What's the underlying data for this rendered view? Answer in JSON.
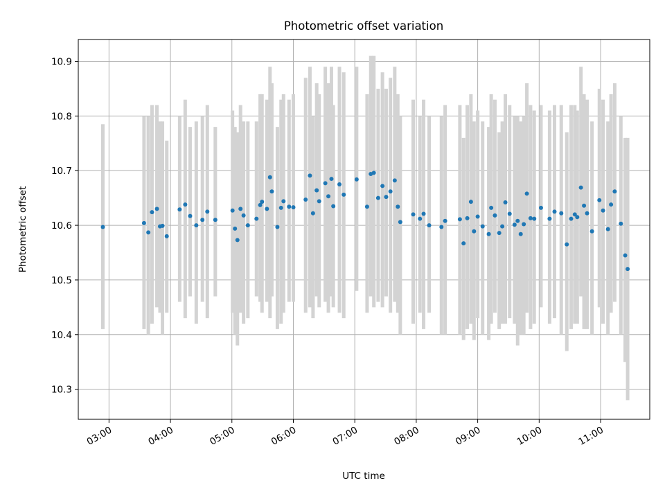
{
  "chart_data": {
    "type": "scatter",
    "title": "Photometric offset variation",
    "xlabel": "UTC time",
    "ylabel": "Photometric offset",
    "grid": true,
    "xlim": [
      2.5,
      11.8
    ],
    "ylim": [
      10.245,
      10.94
    ],
    "x_ticks": [
      3,
      4,
      5,
      6,
      7,
      8,
      9,
      10,
      11
    ],
    "x_tick_labels": [
      "03:00",
      "04:00",
      "05:00",
      "06:00",
      "07:00",
      "08:00",
      "09:00",
      "10:00",
      "11:00"
    ],
    "y_ticks": [
      10.3,
      10.4,
      10.5,
      10.6,
      10.7,
      10.8,
      10.9
    ],
    "y_tick_labels": [
      "10.3",
      "10.4",
      "10.5",
      "10.6",
      "10.7",
      "10.8",
      "10.9"
    ],
    "colors": {
      "point": "#1f77b4",
      "errorbar": "#d3d3d3",
      "grid": "#b0b0b0"
    },
    "series": [
      {
        "x": [
          2.9,
          3.57,
          3.64,
          3.7,
          3.78,
          3.83,
          3.87,
          3.94,
          4.15,
          4.24,
          4.32,
          4.42,
          4.52,
          4.6,
          4.73,
          5.01,
          5.05,
          5.09,
          5.14,
          5.19,
          5.26,
          5.4,
          5.46,
          5.49,
          5.57,
          5.62,
          5.65,
          5.74,
          5.8,
          5.84,
          5.93,
          6.0,
          6.2,
          6.27,
          6.32,
          6.38,
          6.42,
          6.52,
          6.57,
          6.62,
          6.65,
          6.75,
          6.82,
          7.03,
          7.2,
          7.26,
          7.31,
          7.38,
          7.45,
          7.51,
          7.58,
          7.65,
          7.7,
          7.74,
          7.95,
          8.06,
          8.12,
          8.21,
          8.41,
          8.47,
          8.71,
          8.77,
          8.83,
          8.89,
          8.94,
          9.0,
          9.08,
          9.18,
          9.22,
          9.28,
          9.35,
          9.4,
          9.45,
          9.52,
          9.6,
          9.65,
          9.7,
          9.75,
          9.8,
          9.86,
          9.92,
          10.03,
          10.17,
          10.25,
          10.36,
          10.45,
          10.52,
          10.58,
          10.62,
          10.68,
          10.73,
          10.78,
          10.86,
          10.98,
          11.04,
          11.12,
          11.17,
          11.23,
          11.33,
          11.4,
          11.44
        ],
        "y": [
          10.597,
          10.604,
          10.587,
          10.624,
          10.63,
          10.598,
          10.599,
          10.58,
          10.629,
          10.638,
          10.617,
          10.6,
          10.61,
          10.625,
          10.61,
          10.627,
          10.594,
          10.573,
          10.63,
          10.618,
          10.6,
          10.612,
          10.637,
          10.643,
          10.63,
          10.688,
          10.662,
          10.597,
          10.632,
          10.644,
          10.634,
          10.633,
          10.647,
          10.691,
          10.622,
          10.664,
          10.644,
          10.677,
          10.653,
          10.685,
          10.635,
          10.675,
          10.656,
          10.684,
          10.634,
          10.694,
          10.696,
          10.65,
          10.672,
          10.652,
          10.662,
          10.682,
          10.634,
          10.606,
          10.62,
          10.612,
          10.621,
          10.6,
          10.597,
          10.608,
          10.611,
          10.567,
          10.613,
          10.643,
          10.589,
          10.616,
          10.598,
          10.584,
          10.632,
          10.618,
          10.586,
          10.598,
          10.642,
          10.621,
          10.601,
          10.608,
          10.584,
          10.602,
          10.658,
          10.613,
          10.612,
          10.632,
          10.612,
          10.625,
          10.622,
          10.565,
          10.612,
          10.62,
          10.615,
          10.669,
          10.636,
          10.622,
          10.589,
          10.646,
          10.627,
          10.593,
          10.638,
          10.662,
          10.603,
          10.545,
          10.52
        ],
        "err_low": [
          10.41,
          10.41,
          10.4,
          10.42,
          10.45,
          10.44,
          10.4,
          10.44,
          10.46,
          10.43,
          10.47,
          10.42,
          10.46,
          10.43,
          10.47,
          10.44,
          10.4,
          10.38,
          10.44,
          10.42,
          10.43,
          10.47,
          10.46,
          10.44,
          10.46,
          10.43,
          10.47,
          10.41,
          10.42,
          10.44,
          10.46,
          10.46,
          10.44,
          10.45,
          10.43,
          10.47,
          10.45,
          10.46,
          10.44,
          10.47,
          10.45,
          10.44,
          10.43,
          10.48,
          10.44,
          10.47,
          10.45,
          10.46,
          10.45,
          10.47,
          10.44,
          10.46,
          10.44,
          10.4,
          10.42,
          10.44,
          10.41,
          10.44,
          10.4,
          10.4,
          10.4,
          10.39,
          10.41,
          10.42,
          10.39,
          10.43,
          10.4,
          10.39,
          10.42,
          10.44,
          10.41,
          10.42,
          10.42,
          10.43,
          10.42,
          10.38,
          10.4,
          10.4,
          10.44,
          10.41,
          10.42,
          10.45,
          10.42,
          10.43,
          10.4,
          10.37,
          10.41,
          10.42,
          10.42,
          10.47,
          10.41,
          10.41,
          10.4,
          10.45,
          10.42,
          10.4,
          10.44,
          10.46,
          10.4,
          10.35,
          10.28
        ],
        "err_high": [
          10.785,
          10.8,
          10.8,
          10.82,
          10.82,
          10.79,
          10.79,
          10.755,
          10.8,
          10.83,
          10.78,
          10.79,
          10.8,
          10.82,
          10.78,
          10.81,
          10.78,
          10.77,
          10.82,
          10.79,
          10.79,
          10.79,
          10.84,
          10.84,
          10.83,
          10.89,
          10.86,
          10.78,
          10.83,
          10.84,
          10.83,
          10.84,
          10.87,
          10.89,
          10.8,
          10.86,
          10.84,
          10.89,
          10.86,
          10.89,
          10.82,
          10.89,
          10.88,
          10.89,
          10.84,
          10.91,
          10.91,
          10.85,
          10.88,
          10.85,
          10.87,
          10.89,
          10.84,
          10.8,
          10.83,
          10.8,
          10.83,
          10.8,
          10.8,
          10.82,
          10.82,
          10.76,
          10.82,
          10.84,
          10.79,
          10.81,
          10.79,
          10.78,
          10.84,
          10.83,
          10.77,
          10.79,
          10.84,
          10.82,
          10.8,
          10.8,
          10.79,
          10.8,
          10.86,
          10.82,
          10.81,
          10.82,
          10.81,
          10.82,
          10.82,
          10.77,
          10.82,
          10.82,
          10.81,
          10.89,
          10.84,
          10.83,
          10.79,
          10.85,
          10.83,
          10.79,
          10.84,
          10.86,
          10.8,
          10.76,
          10.76
        ]
      }
    ]
  }
}
